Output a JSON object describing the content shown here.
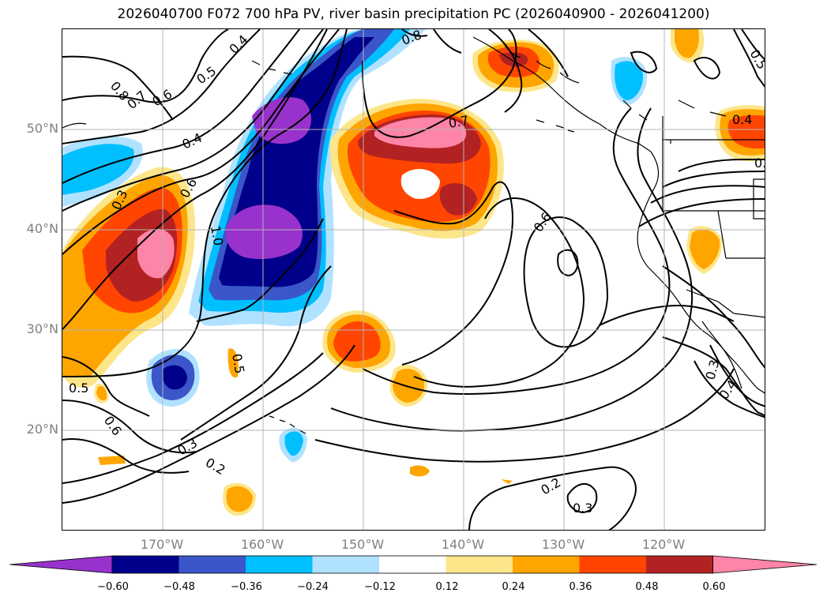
{
  "title": "2026040700 F072 700 hPa PV, river basin precipitation PC (2026040900 - 2026041200)",
  "lat_labels": [
    "50°N",
    "40°N",
    "30°N",
    "20°N"
  ],
  "lon_labels": [
    "170°W",
    "160°W",
    "150°W",
    "140°W",
    "130°W",
    "120°W"
  ],
  "contour_labels": [
    "0.8",
    "0.7",
    "0.6",
    "0.5",
    "0.4",
    "0.3",
    "0.4",
    "0.6",
    "0.7",
    "1.0",
    "0.8",
    "0.5",
    "0.5",
    "0.6",
    "0.3",
    "0.2",
    "0.6",
    "0.2",
    "0.3",
    "0.3",
    "0.4",
    "0.4",
    "0.5",
    "0.5"
  ],
  "colorbar": {
    "ticks": [
      "−0.60",
      "−0.48",
      "−0.36",
      "−0.24",
      "−0.12",
      "0.12",
      "0.24",
      "0.36",
      "0.48",
      "0.60"
    ],
    "colors": [
      "#9932cc",
      "#00008b",
      "#3a56c8",
      "#00bfff",
      "#b0e2ff",
      "#ffffff",
      "#fde68a",
      "#ffa500",
      "#ff4500",
      "#b22222",
      "#ff85a8"
    ]
  },
  "colors": {
    "grid": "#b4b4b4",
    "tick_label": "#808080"
  }
}
